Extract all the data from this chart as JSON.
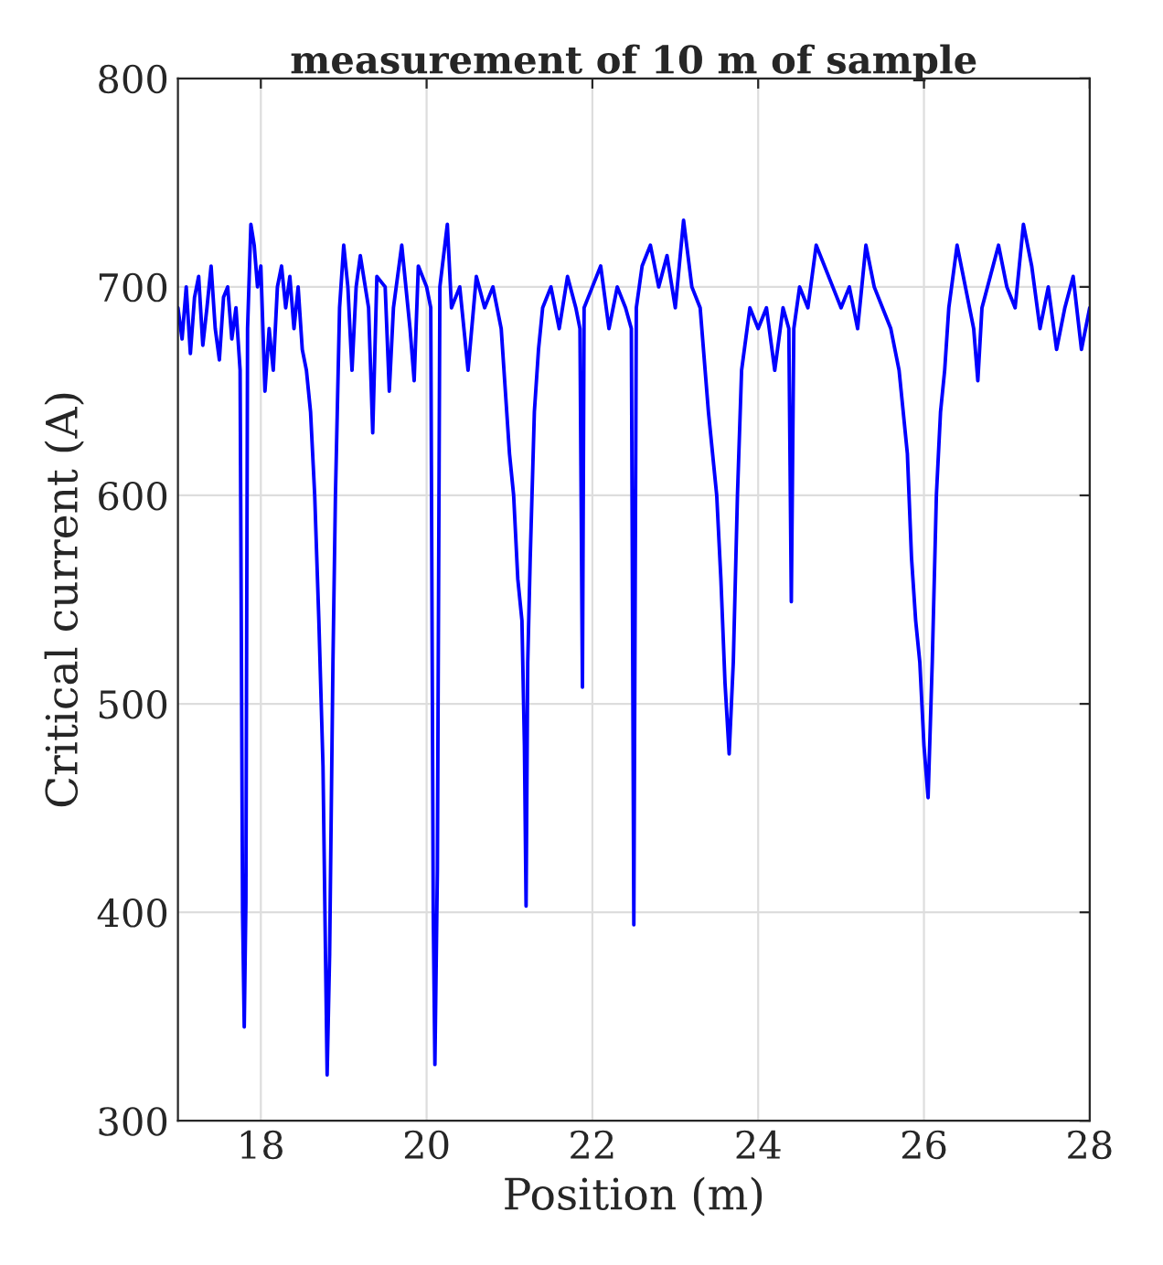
{
  "chart_data": {
    "type": "line",
    "title": "measurement of 10 m of sample",
    "xlabel": "Position (m)",
    "ylabel": "Critical current (A)",
    "xlim": [
      17,
      28
    ],
    "xticks": [
      18,
      20,
      22,
      24,
      26,
      28
    ],
    "ylim": [
      300,
      800
    ],
    "yticks": [
      300,
      400,
      500,
      600,
      700,
      800
    ],
    "grid": true,
    "series": [
      {
        "color": "#0000ff",
        "x": [
          17.0,
          17.05,
          17.1,
          17.15,
          17.2,
          17.25,
          17.3,
          17.35,
          17.4,
          17.45,
          17.5,
          17.55,
          17.6,
          17.65,
          17.7,
          17.75,
          17.78,
          17.8,
          17.82,
          17.84,
          17.88,
          17.92,
          17.96,
          18.0,
          18.05,
          18.1,
          18.15,
          18.2,
          18.25,
          18.3,
          18.35,
          18.4,
          18.45,
          18.5,
          18.55,
          18.6,
          18.65,
          18.7,
          18.75,
          18.78,
          18.8,
          18.83,
          18.87,
          18.9,
          18.95,
          19.0,
          19.05,
          19.1,
          19.15,
          19.2,
          19.3,
          19.35,
          19.4,
          19.5,
          19.55,
          19.6,
          19.7,
          19.8,
          19.85,
          19.9,
          20.0,
          20.05,
          20.08,
          20.1,
          20.13,
          20.16,
          20.25,
          20.3,
          20.4,
          20.5,
          20.6,
          20.7,
          20.8,
          20.9,
          20.95,
          21.0,
          21.05,
          21.1,
          21.15,
          21.18,
          21.2,
          21.22,
          21.25,
          21.3,
          21.35,
          21.4,
          21.5,
          21.6,
          21.7,
          21.8,
          21.85,
          21.88,
          21.9,
          22.0,
          22.1,
          22.2,
          22.3,
          22.4,
          22.47,
          22.5,
          22.53,
          22.6,
          22.7,
          22.8,
          22.9,
          23.0,
          23.1,
          23.2,
          23.3,
          23.4,
          23.5,
          23.55,
          23.6,
          23.65,
          23.7,
          23.75,
          23.8,
          23.9,
          24.0,
          24.1,
          24.2,
          24.3,
          24.37,
          24.4,
          24.43,
          24.5,
          24.6,
          24.7,
          24.8,
          24.9,
          25.0,
          25.1,
          25.2,
          25.3,
          25.4,
          25.5,
          25.6,
          25.7,
          25.8,
          25.85,
          25.9,
          25.95,
          26.0,
          26.05,
          26.1,
          26.15,
          26.2,
          26.25,
          26.3,
          26.4,
          26.5,
          26.6,
          26.65,
          26.7,
          26.8,
          26.9,
          27.0,
          27.1,
          27.2,
          27.3,
          27.4,
          27.5,
          27.6,
          27.7,
          27.8,
          27.9,
          28.0
        ],
        "values": [
          690,
          675,
          700,
          668,
          695,
          705,
          672,
          690,
          710,
          680,
          665,
          695,
          700,
          675,
          690,
          660,
          400,
          345,
          405,
          680,
          730,
          720,
          700,
          710,
          650,
          680,
          660,
          700,
          710,
          690,
          705,
          680,
          700,
          670,
          660,
          640,
          600,
          540,
          470,
          380,
          322,
          380,
          520,
          600,
          690,
          720,
          700,
          660,
          700,
          715,
          690,
          630,
          705,
          700,
          650,
          690,
          720,
          680,
          655,
          710,
          700,
          690,
          400,
          327,
          420,
          700,
          730,
          690,
          700,
          660,
          705,
          690,
          700,
          680,
          650,
          620,
          600,
          560,
          540,
          480,
          403,
          520,
          570,
          640,
          670,
          690,
          700,
          680,
          705,
          690,
          680,
          508,
          690,
          700,
          710,
          680,
          700,
          690,
          680,
          394,
          690,
          710,
          720,
          700,
          715,
          690,
          732,
          700,
          690,
          640,
          600,
          560,
          510,
          476,
          520,
          600,
          660,
          690,
          680,
          690,
          660,
          690,
          680,
          549,
          680,
          700,
          690,
          720,
          710,
          700,
          690,
          700,
          680,
          720,
          700,
          690,
          680,
          660,
          620,
          570,
          540,
          520,
          480,
          455,
          520,
          600,
          640,
          660,
          690,
          720,
          700,
          680,
          655,
          690,
          705,
          720,
          700,
          690,
          730,
          710,
          680,
          700,
          670,
          690,
          705,
          670,
          690
        ]
      }
    ]
  }
}
